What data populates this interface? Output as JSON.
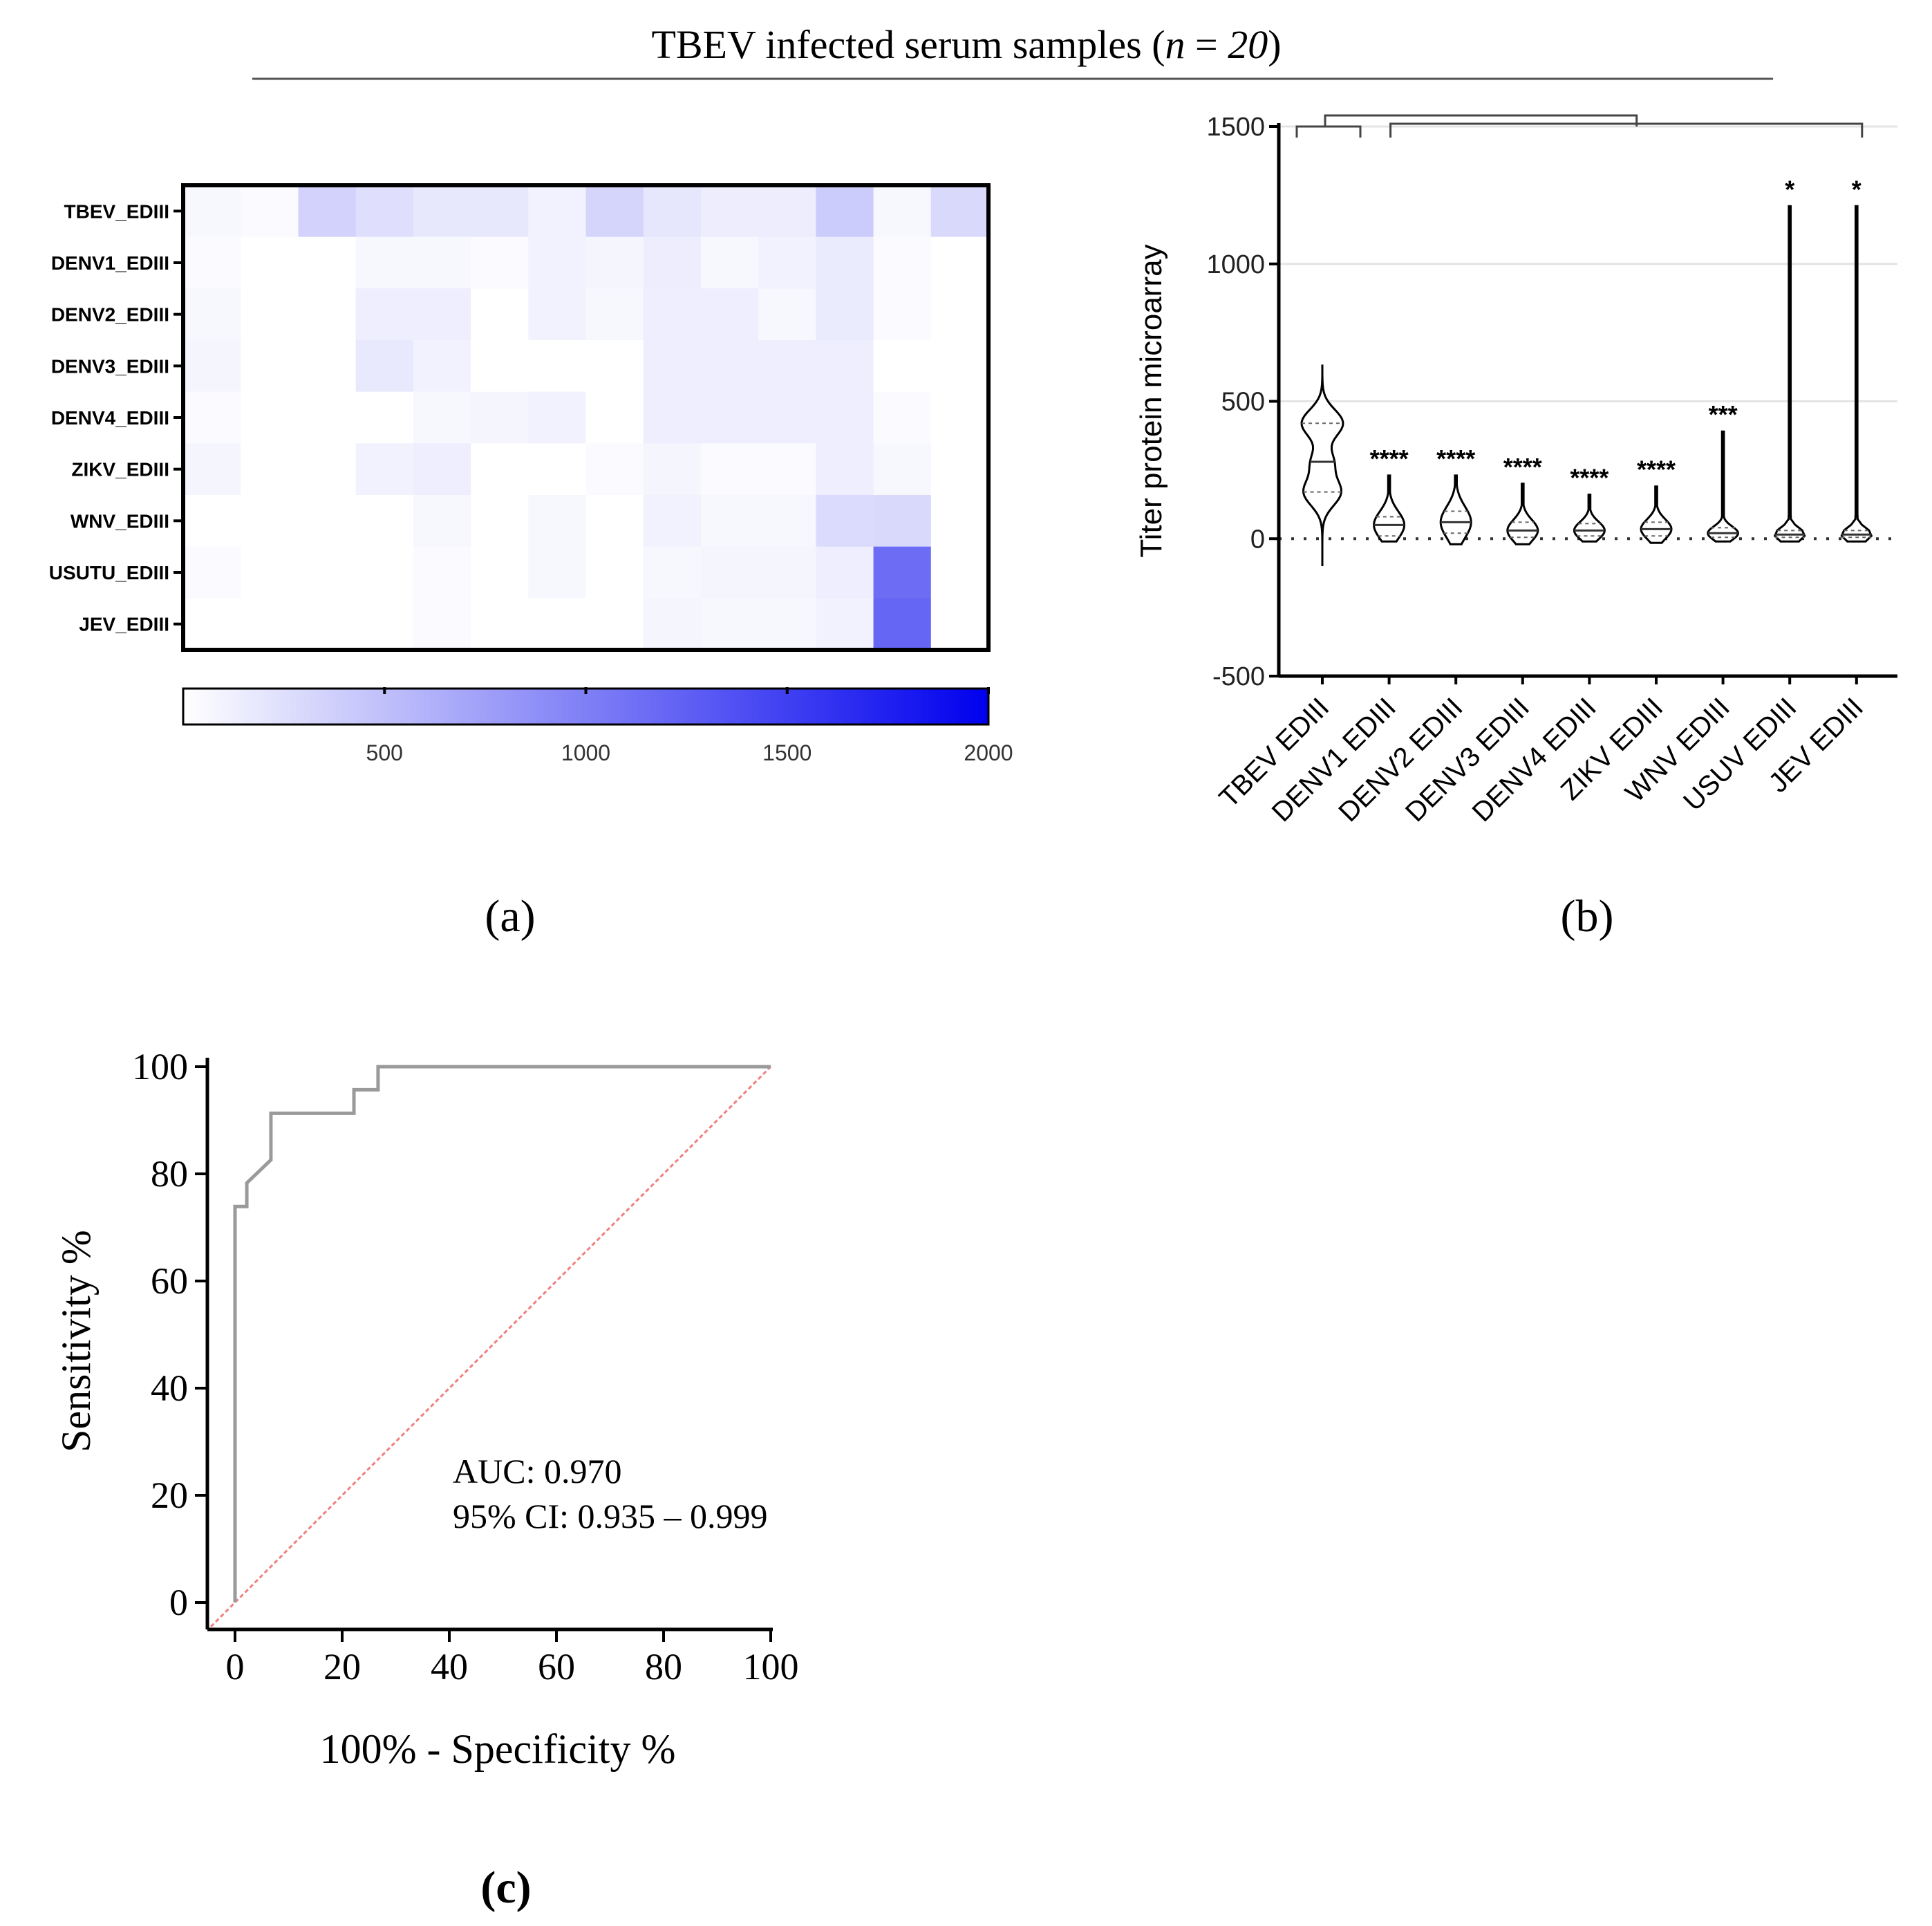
{
  "figure": {
    "title_prefix": "TBEV infected serum samples (",
    "title_n": "n",
    "title_eq": " = ",
    "title_num": "20",
    "title_suffix": ")",
    "panel_a_label": "(a)",
    "panel_b_label": "(b)",
    "panel_c_label": "(c)"
  },
  "colors": {
    "heat_max": "#0000ee",
    "roc_curve": "#9a9a9a",
    "diagonal": "#f08080",
    "axis": "#000000"
  },
  "chart_data": [
    {
      "id": "heatmap",
      "type": "heatmap",
      "rows": [
        "TBEV_EDIII",
        "DENV1_EDIII",
        "DENV2_EDIII",
        "DENV3_EDIII",
        "DENV4_EDIII",
        "ZIKV_EDIII",
        "WNV_EDIII",
        "USUTU_EDIII",
        "JEV_EDIII"
      ],
      "n_columns": 14,
      "values": [
        [
          60,
          30,
          350,
          250,
          180,
          180,
          100,
          330,
          200,
          140,
          140,
          400,
          60,
          300
        ],
        [
          40,
          0,
          0,
          60,
          60,
          40,
          100,
          80,
          140,
          60,
          100,
          160,
          40,
          0
        ],
        [
          60,
          0,
          0,
          130,
          130,
          0,
          100,
          60,
          130,
          130,
          60,
          160,
          40,
          0
        ],
        [
          80,
          0,
          0,
          170,
          100,
          0,
          0,
          0,
          130,
          130,
          130,
          130,
          0,
          0
        ],
        [
          30,
          0,
          0,
          0,
          60,
          80,
          100,
          0,
          130,
          130,
          130,
          130,
          30,
          0
        ],
        [
          80,
          0,
          0,
          100,
          130,
          0,
          0,
          40,
          80,
          40,
          40,
          130,
          60,
          0
        ],
        [
          0,
          0,
          0,
          0,
          60,
          0,
          60,
          0,
          100,
          60,
          60,
          280,
          300,
          0
        ],
        [
          40,
          0,
          0,
          0,
          40,
          0,
          60,
          0,
          60,
          80,
          80,
          130,
          1150,
          0
        ],
        [
          0,
          0,
          0,
          0,
          40,
          0,
          0,
          0,
          80,
          60,
          60,
          100,
          1200,
          0
        ]
      ],
      "colorbar": {
        "min": 0,
        "max": 2000,
        "ticks": [
          "500",
          "1000",
          "1500",
          "2000"
        ],
        "tick_values": [
          500,
          1000,
          1500,
          2000
        ]
      }
    },
    {
      "id": "violin",
      "type": "violin",
      "categories": [
        "TBEV EDIII",
        "DENV1 EDIII",
        "DENV2 EDIII",
        "DENV3 EDIII",
        "DENV4 EDIII",
        "ZIKV EDIII",
        "WNV EDIII",
        "USUV EDIII",
        "JEV EDIII"
      ],
      "ylabel": "Titer protein microarray",
      "ylim": [
        -500,
        1500
      ],
      "yticks": [
        "-500",
        "0",
        "500",
        "1000",
        "1500"
      ],
      "ytick_values": [
        -500,
        0,
        500,
        1000,
        1500
      ],
      "min": [
        -100,
        -10,
        -20,
        -20,
        -10,
        -15,
        -10,
        -10,
        -10
      ],
      "max": [
        630,
        230,
        230,
        200,
        160,
        190,
        390,
        1210,
        1210
      ],
      "median": [
        280,
        50,
        60,
        30,
        30,
        35,
        20,
        15,
        15
      ],
      "q1": [
        170,
        10,
        20,
        5,
        10,
        10,
        5,
        5,
        5
      ],
      "q3": [
        420,
        80,
        100,
        60,
        55,
        60,
        40,
        30,
        30
      ],
      "significance": [
        "",
        "****",
        "****",
        "****",
        "****",
        "****",
        "***",
        "*",
        "*"
      ]
    },
    {
      "id": "roc",
      "type": "line",
      "xlabel": "100% - Specificity %",
      "ylabel": "Sensitivity %",
      "xlim": [
        0,
        100
      ],
      "ylim": [
        0,
        100
      ],
      "xticks": [
        "0",
        "20",
        "40",
        "60",
        "80",
        "100"
      ],
      "yticks": [
        "0",
        "20",
        "40",
        "60",
        "80",
        "100"
      ],
      "tick_values": [
        0,
        20,
        40,
        60,
        80,
        100
      ],
      "series": [
        {
          "name": "ROC",
          "x": [
            0,
            0,
            2.2,
            2.2,
            4.4,
            6.7,
            6.7,
            22.2,
            22.2,
            26.7,
            26.7,
            100
          ],
          "y": [
            0,
            73.9,
            73.9,
            78.3,
            80.4,
            82.6,
            91.3,
            91.3,
            95.7,
            95.7,
            100,
            100
          ]
        },
        {
          "name": "Reference",
          "x": [
            0,
            100
          ],
          "y": [
            0,
            100
          ]
        }
      ],
      "annotation_auc": "AUC: 0.970",
      "annotation_ci": "95% CI: 0.935 – 0.999"
    }
  ]
}
